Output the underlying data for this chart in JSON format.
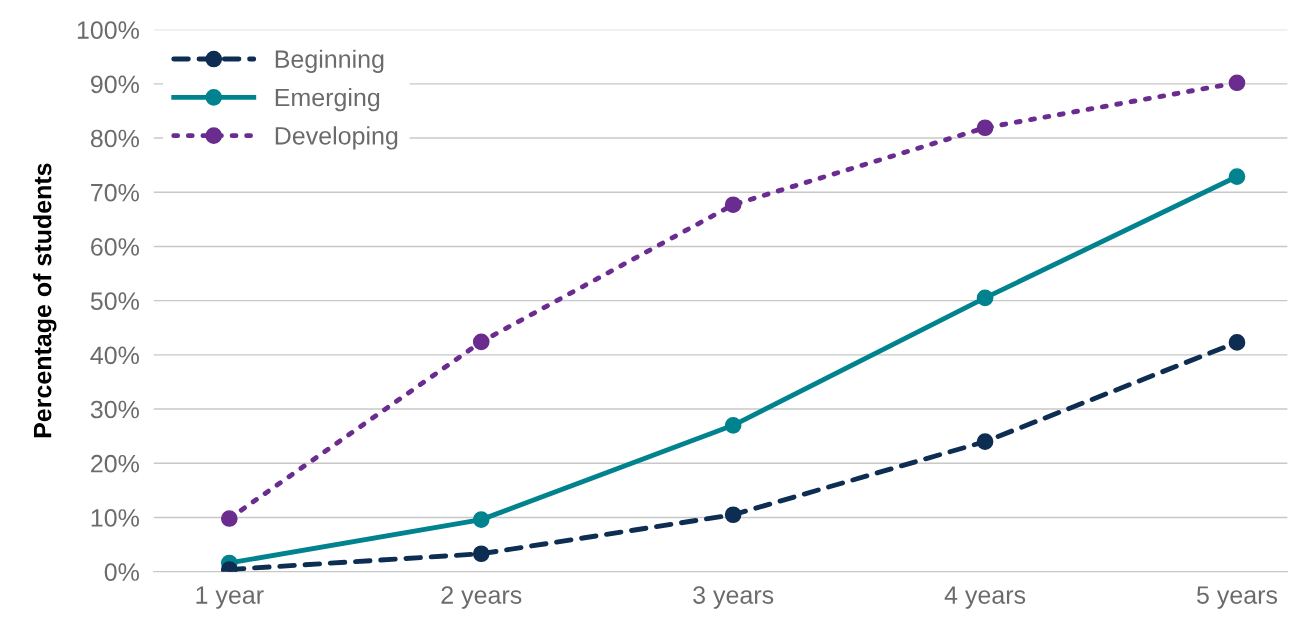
{
  "chart_data": {
    "type": "line",
    "ylabel": "Percentage of students",
    "categories": [
      "1 year",
      "2 years",
      "3 years",
      "4 years",
      "5 years"
    ],
    "series": [
      {
        "name": "Beginning",
        "color": "#0e2d52",
        "line_style": "dashed",
        "values": [
          0.4,
          3.3,
          10.5,
          24,
          42.3
        ]
      },
      {
        "name": "Emerging",
        "color": "#00838f",
        "line_style": "solid",
        "values": [
          1.6,
          9.6,
          27,
          50.5,
          72.9
        ]
      },
      {
        "name": "Developing",
        "color": "#6a2c8e",
        "line_style": "dotted",
        "values": [
          9.8,
          42.4,
          67.7,
          81.9,
          90.2
        ]
      }
    ],
    "ylim": [
      0,
      100
    ],
    "yticks": [
      {
        "value": 0,
        "label": "0%"
      },
      {
        "value": 10,
        "label": "10%"
      },
      {
        "value": 20,
        "label": "20%"
      },
      {
        "value": 30,
        "label": "30%"
      },
      {
        "value": 40,
        "label": "40%"
      },
      {
        "value": 50,
        "label": "50%"
      },
      {
        "value": 60,
        "label": "60%"
      },
      {
        "value": 70,
        "label": "70%"
      },
      {
        "value": 80,
        "label": "80%"
      },
      {
        "value": 90,
        "label": "90%"
      },
      {
        "value": 100,
        "label": "100%"
      }
    ],
    "grid": "y",
    "legend": "top left",
    "marker": "circle"
  }
}
